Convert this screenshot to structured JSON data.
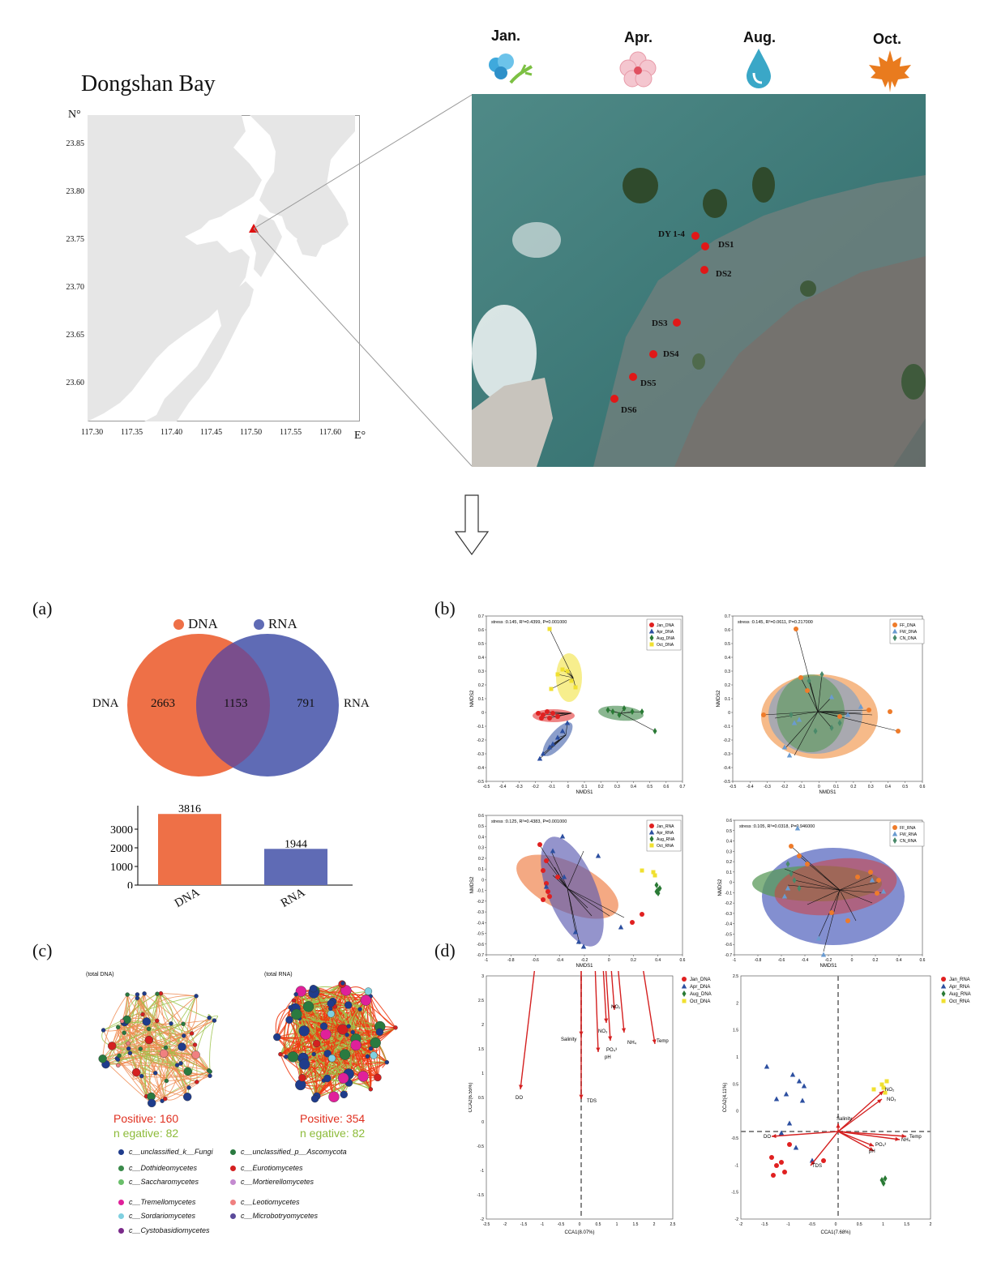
{
  "map": {
    "title": "Dongshan Bay",
    "lat_axis_label": "N°",
    "lon_axis_label": "E°",
    "lat_ticks": [
      "23.85",
      "23.80",
      "23.75",
      "23.70",
      "23.65",
      "23.60"
    ],
    "lon_ticks": [
      "117.30",
      "117.35",
      "117.40",
      "117.45",
      "117.50",
      "117.55",
      "117.60"
    ]
  },
  "seasons": [
    {
      "label": "Jan.",
      "icon": "wind-snow-icon"
    },
    {
      "label": "Apr.",
      "icon": "blossom-icon"
    },
    {
      "label": "Aug.",
      "icon": "water-drop-icon"
    },
    {
      "label": "Oct.",
      "icon": "maple-leaf-icon"
    }
  ],
  "sites": [
    "DY 1-4",
    "DS1",
    "DS2",
    "DS3",
    "DS4",
    "DS5",
    "DS6"
  ],
  "panels": {
    "a": "(a)",
    "b": "(b)",
    "c": "(c)",
    "d": "(d)"
  },
  "colors": {
    "dna": "#ee7047",
    "rna": "#5f6bb5",
    "overlap": "#7a4e8c",
    "jan": "#e02020",
    "apr": "#2c4fa0",
    "aug": "#2a7a35",
    "oct": "#f0e030",
    "pos": "#e03020",
    "neg": "#8dbb3a"
  },
  "chart_data": [
    {
      "type": "venn",
      "legend": [
        "DNA",
        "RNA"
      ],
      "set_labels": [
        "DNA",
        "RNA"
      ],
      "values": {
        "dna_only": 2663,
        "overlap": 1153,
        "rna_only": 791
      }
    },
    {
      "type": "bar",
      "categories": [
        "DNA",
        "RNA"
      ],
      "values": [
        3816,
        1944
      ],
      "yticks": [
        "3000",
        "2000",
        "1000",
        "0"
      ],
      "ylim": [
        0,
        4000
      ]
    },
    {
      "type": "scatter",
      "title": "stress :0.145, R²=0.4399, P=0.001000",
      "xlabel": "NMDS1",
      "ylabel": "NMDS2",
      "xticks": [
        "-0.5",
        "-0.4",
        "-0.3",
        "-0.2",
        "-0.1",
        "0",
        "0.1",
        "0.2",
        "0.3",
        "0.4",
        "0.5",
        "0.6",
        "0.7"
      ],
      "yticks": [
        "0.7",
        "0.6",
        "0.5",
        "0.4",
        "0.3",
        "0.2",
        "0.1",
        "0",
        "-0.1",
        "-0.2",
        "-0.3",
        "-0.4",
        "-0.5"
      ],
      "legend": [
        "Jan_DNA",
        "Apr_DNA",
        "Aug_DNA",
        "Oct_DNA"
      ]
    },
    {
      "type": "scatter",
      "title": "stress :0.145, R²=0.0611, P=0.217000",
      "xlabel": "NMDS1",
      "ylabel": "NMDS2",
      "xticks": [
        "-0.5",
        "-0.4",
        "-0.3",
        "-0.2",
        "-0.1",
        "0",
        "0.1",
        "0.2",
        "0.3",
        "0.4",
        "0.5",
        "0.6"
      ],
      "yticks": [
        "0.7",
        "0.6",
        "0.5",
        "0.4",
        "0.3",
        "0.2",
        "0.1",
        "0",
        "-0.1",
        "-0.2",
        "-0.3",
        "-0.4",
        "-0.5"
      ],
      "legend": [
        "FF_DNA",
        "FW_DNA",
        "CN_DNA"
      ]
    },
    {
      "type": "scatter",
      "title": "stress :0.125, R²=0.4383, P=0.001000",
      "xlabel": "NMDS1",
      "ylabel": "NMDS2",
      "xticks": [
        "-1",
        "-0.8",
        "-0.6",
        "-0.4",
        "-0.2",
        "0",
        "0.2",
        "0.4",
        "0.6"
      ],
      "yticks": [
        "0.6",
        "0.5",
        "0.4",
        "0.3",
        "0.2",
        "0.1",
        "0",
        "-0.1",
        "-0.2",
        "-0.3",
        "-0.4",
        "-0.5",
        "-0.6",
        "-0.7"
      ],
      "legend": [
        "Jan_RNA",
        "Apr_RNA",
        "Aug_RNA",
        "Oct_RNA"
      ]
    },
    {
      "type": "scatter",
      "title": "stress :0.105, R²=0.0318, P=0.946000",
      "xlabel": "NMDS1",
      "ylabel": "NMDS2",
      "xticks": [
        "-1",
        "-0.8",
        "-0.6",
        "-0.4",
        "-0.2",
        "0",
        "0.2",
        "0.4",
        "0.6"
      ],
      "yticks": [
        "0.6",
        "0.5",
        "0.4",
        "0.3",
        "0.2",
        "0.1",
        "0",
        "-0.1",
        "-0.2",
        "-0.3",
        "-0.4",
        "-0.5",
        "-0.6",
        "-0.7"
      ],
      "legend": [
        "FF_RNA",
        "FW_RNA",
        "CN_RNA"
      ]
    },
    {
      "type": "network",
      "title": "(total DNA)",
      "positive_label": "Positive: ",
      "positive": 160,
      "negative_label": "n egative: ",
      "negative": 82
    },
    {
      "type": "network",
      "title": "(total RNA)",
      "positive_label": "Positive: ",
      "positive": 354,
      "negative_label": "n egative: ",
      "negative": 82
    },
    {
      "type": "scatter",
      "xlabel": "CCA1(8.07%)",
      "ylabel": "CCA2(6.55%)",
      "xticks": [
        "-2.5",
        "-2",
        "-1.5",
        "-1",
        "-0.5",
        "0",
        "0.5",
        "1",
        "1.5",
        "2",
        "2.5"
      ],
      "yticks": [
        "3",
        "2.5",
        "2",
        "1.5",
        "1",
        "0.5",
        "0",
        "-0.5",
        "-1",
        "-1.5",
        "-2"
      ],
      "legend": [
        "Jan_DNA",
        "Apr_DNA",
        "Aug_DNA",
        "Oct_DNA"
      ],
      "vectors": [
        "NO₂",
        "NO₃",
        "NH₄",
        "Temp",
        "PO₄³",
        "pH",
        "Salinity",
        "DO",
        "TDS"
      ]
    },
    {
      "type": "scatter",
      "xlabel": "CCA1(7.68%)",
      "ylabel": "CCA2(4.11%)",
      "xticks": [
        "-2",
        "-1.5",
        "-1",
        "-0.5",
        "0",
        "0.5",
        "1",
        "1.5",
        "2"
      ],
      "yticks": [
        "2.5",
        "2",
        "1.5",
        "1",
        "0.5",
        "0",
        "-0.5",
        "-1",
        "-1.5",
        "-2"
      ],
      "legend": [
        "Jan_RNA",
        "Apr_RNA",
        "Aug_RNA",
        "Oct_RNA"
      ],
      "vectors": [
        "NO₂",
        "NO₃",
        "Salinity",
        "DO",
        "TDS",
        "PO₄³",
        "pH",
        "NH₄",
        "Temp"
      ]
    }
  ],
  "network_legend": [
    {
      "label": "c__unclassified_k__Fungi",
      "color": "#1f3c8c"
    },
    {
      "label": "c__unclassified_p__Ascomycota",
      "color": "#2a7a40"
    },
    {
      "label": "c__Dothideomycetes",
      "color": "#3a8a4a"
    },
    {
      "label": "c__Eurotiomycetes",
      "color": "#d42020"
    },
    {
      "label": "c__Saccharomycetes",
      "color": "#6abf6a"
    },
    {
      "label": "c__Mortierellomycetes",
      "color": "#c48ad0"
    },
    {
      "label": "c__Tremellomycetes",
      "color": "#e0209a"
    },
    {
      "label": "c__Leotiomycetes",
      "color": "#f08080"
    },
    {
      "label": "c__Sordariomycetes",
      "color": "#7fd0e0"
    },
    {
      "label": "c__Microbotryomycetes",
      "color": "#5a4a9a"
    },
    {
      "label": "c__Cystobasidiomycetes",
      "color": "#7a2a8a"
    }
  ]
}
